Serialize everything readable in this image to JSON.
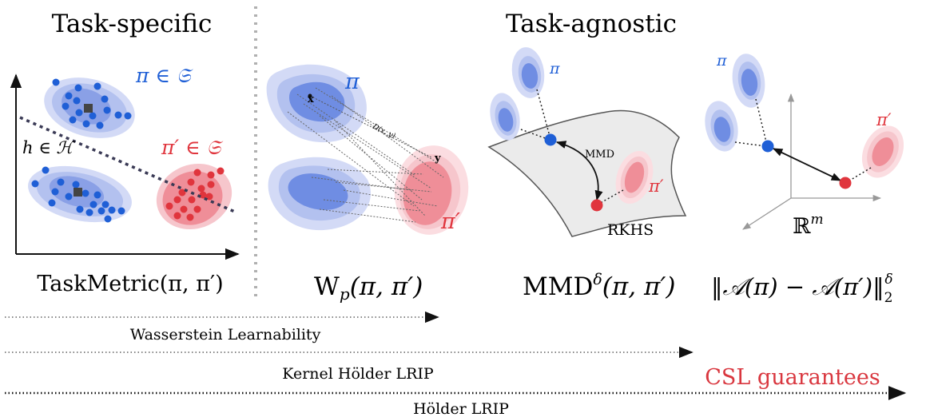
{
  "headings": {
    "task_specific": "Task-specific",
    "task_agnostic": "Task-agnostic"
  },
  "panel1": {
    "pi_label": "π ∈ 𝔖",
    "pi_prime_label": "π′ ∈ 𝔖",
    "h_label": "h ∈ ℋ",
    "metric": "TaskMetric(π, π′)"
  },
  "panel2": {
    "pi_label": "π",
    "pi_prime_label": "π′",
    "x_label": "x",
    "y_label": "y",
    "d_label": "D(x, y)",
    "metric_main": "W",
    "metric_sub": "p",
    "metric_rest": "(π, π′)"
  },
  "panel3": {
    "pi_label": "π",
    "pi_prime_label": "π′",
    "mmd_label": "MMD",
    "rkhs_label": "RKHS",
    "metric_main": "MMD",
    "metric_sup": "δ",
    "metric_rest": "(π, π′)"
  },
  "panel4": {
    "pi_label": "π",
    "pi_prime_label": "π′",
    "space_label": "ℝ",
    "space_sup": "m",
    "metric_main": "‖𝒜(π) − 𝒜(π′)‖",
    "metric_sub": "2",
    "metric_sup": "δ"
  },
  "arrows": {
    "wasserstein": "Wasserstein Learnability",
    "kernel": "Kernel Hölder LRIP",
    "holder": "Hölder LRIP",
    "csl": "CSL guarantees"
  },
  "colors": {
    "blue": "#1f5fd6",
    "red": "#e0353d",
    "blue_light": "#c9d2f4",
    "red_light": "#f6c6cc",
    "csl_red": "#d9373f"
  }
}
